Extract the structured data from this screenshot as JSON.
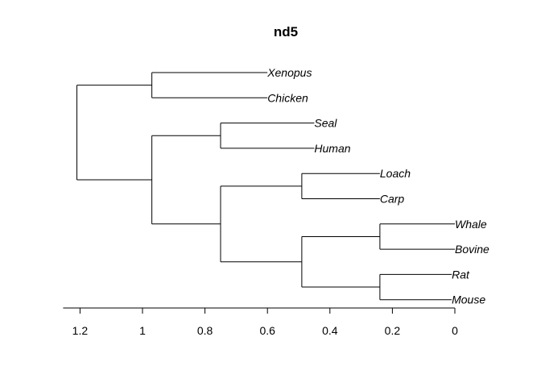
{
  "title": "nd5",
  "tree": {
    "children": [
      {
        "height": 0.97,
        "children": [
          {
            "leaf": "Xenopus",
            "height": 0.6
          },
          {
            "leaf": "Chicken",
            "height": 0.6
          }
        ]
      },
      {
        "height": 0.97,
        "children": [
          {
            "height": 0.75,
            "children": [
              {
                "leaf": "Seal",
                "height": 0.45
              },
              {
                "leaf": "Human",
                "height": 0.45
              }
            ]
          },
          {
            "height": 0.75,
            "children": [
              {
                "height": 0.49,
                "children": [
                  {
                    "leaf": "Loach",
                    "height": 0.24
                  },
                  {
                    "leaf": "Carp",
                    "height": 0.24
                  }
                ]
              },
              {
                "height": 0.49,
                "children": [
                  {
                    "height": 0.24,
                    "children": [
                      {
                        "leaf": "Whale",
                        "height": 0.0
                      },
                      {
                        "leaf": "Bovine",
                        "height": 0.0
                      }
                    ]
                  },
                  {
                    "height": 0.24,
                    "children": [
                      {
                        "leaf": "Rat",
                        "height": 0.01
                      },
                      {
                        "leaf": "Mouse",
                        "height": 0.01
                      }
                    ]
                  }
                ]
              }
            ]
          }
        ]
      }
    ],
    "height": 1.21
  },
  "axis": {
    "ticks": [
      1.2,
      1,
      0.8,
      0.6,
      0.4,
      0.2,
      0
    ],
    "tick_labels": [
      "1.2",
      "1",
      "0.8",
      "0.6",
      "0.4",
      "0.2",
      "0"
    ]
  }
}
